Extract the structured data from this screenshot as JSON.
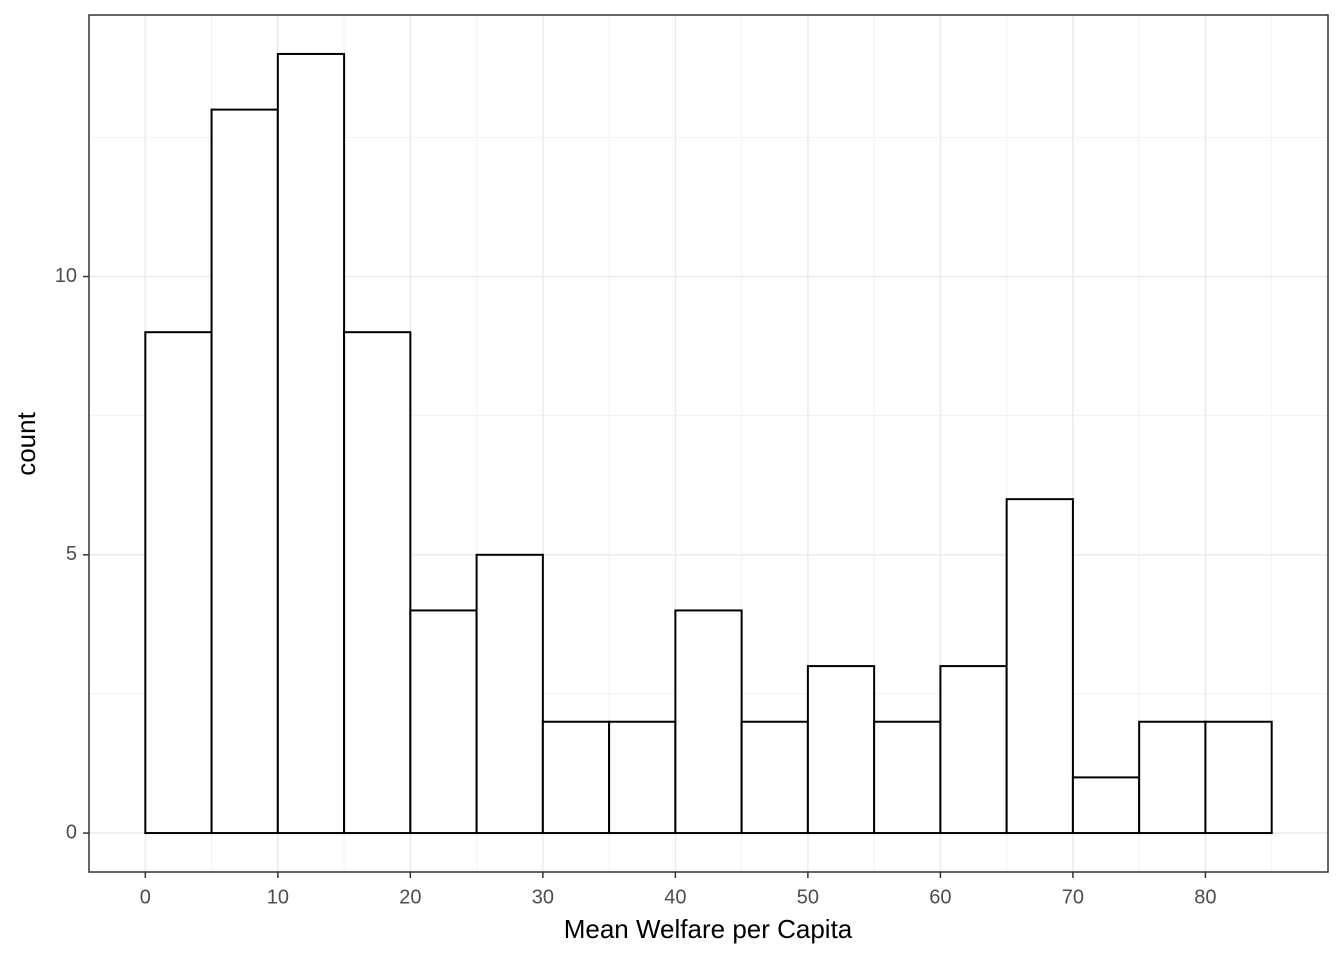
{
  "chart_data": {
    "type": "histogram",
    "xlabel": "Mean Welfare per Capita",
    "ylabel": "count",
    "bins": [
      0,
      5,
      10,
      15,
      20,
      25,
      30,
      35,
      40,
      45,
      50,
      55,
      60,
      65,
      70,
      75,
      80,
      85
    ],
    "values": [
      9,
      13,
      14,
      9,
      4,
      5,
      2,
      2,
      4,
      2,
      3,
      2,
      3,
      6,
      1,
      2,
      2
    ],
    "color": "#ffffff",
    "edgecolor": "#000000",
    "xlim": [
      -4.25,
      89.25
    ],
    "ylim": [
      -0.7,
      14.7
    ],
    "xticks": [
      0,
      10,
      20,
      30,
      40,
      50,
      60,
      70,
      80
    ],
    "yticks": [
      0,
      5,
      10
    ],
    "grid": true
  }
}
